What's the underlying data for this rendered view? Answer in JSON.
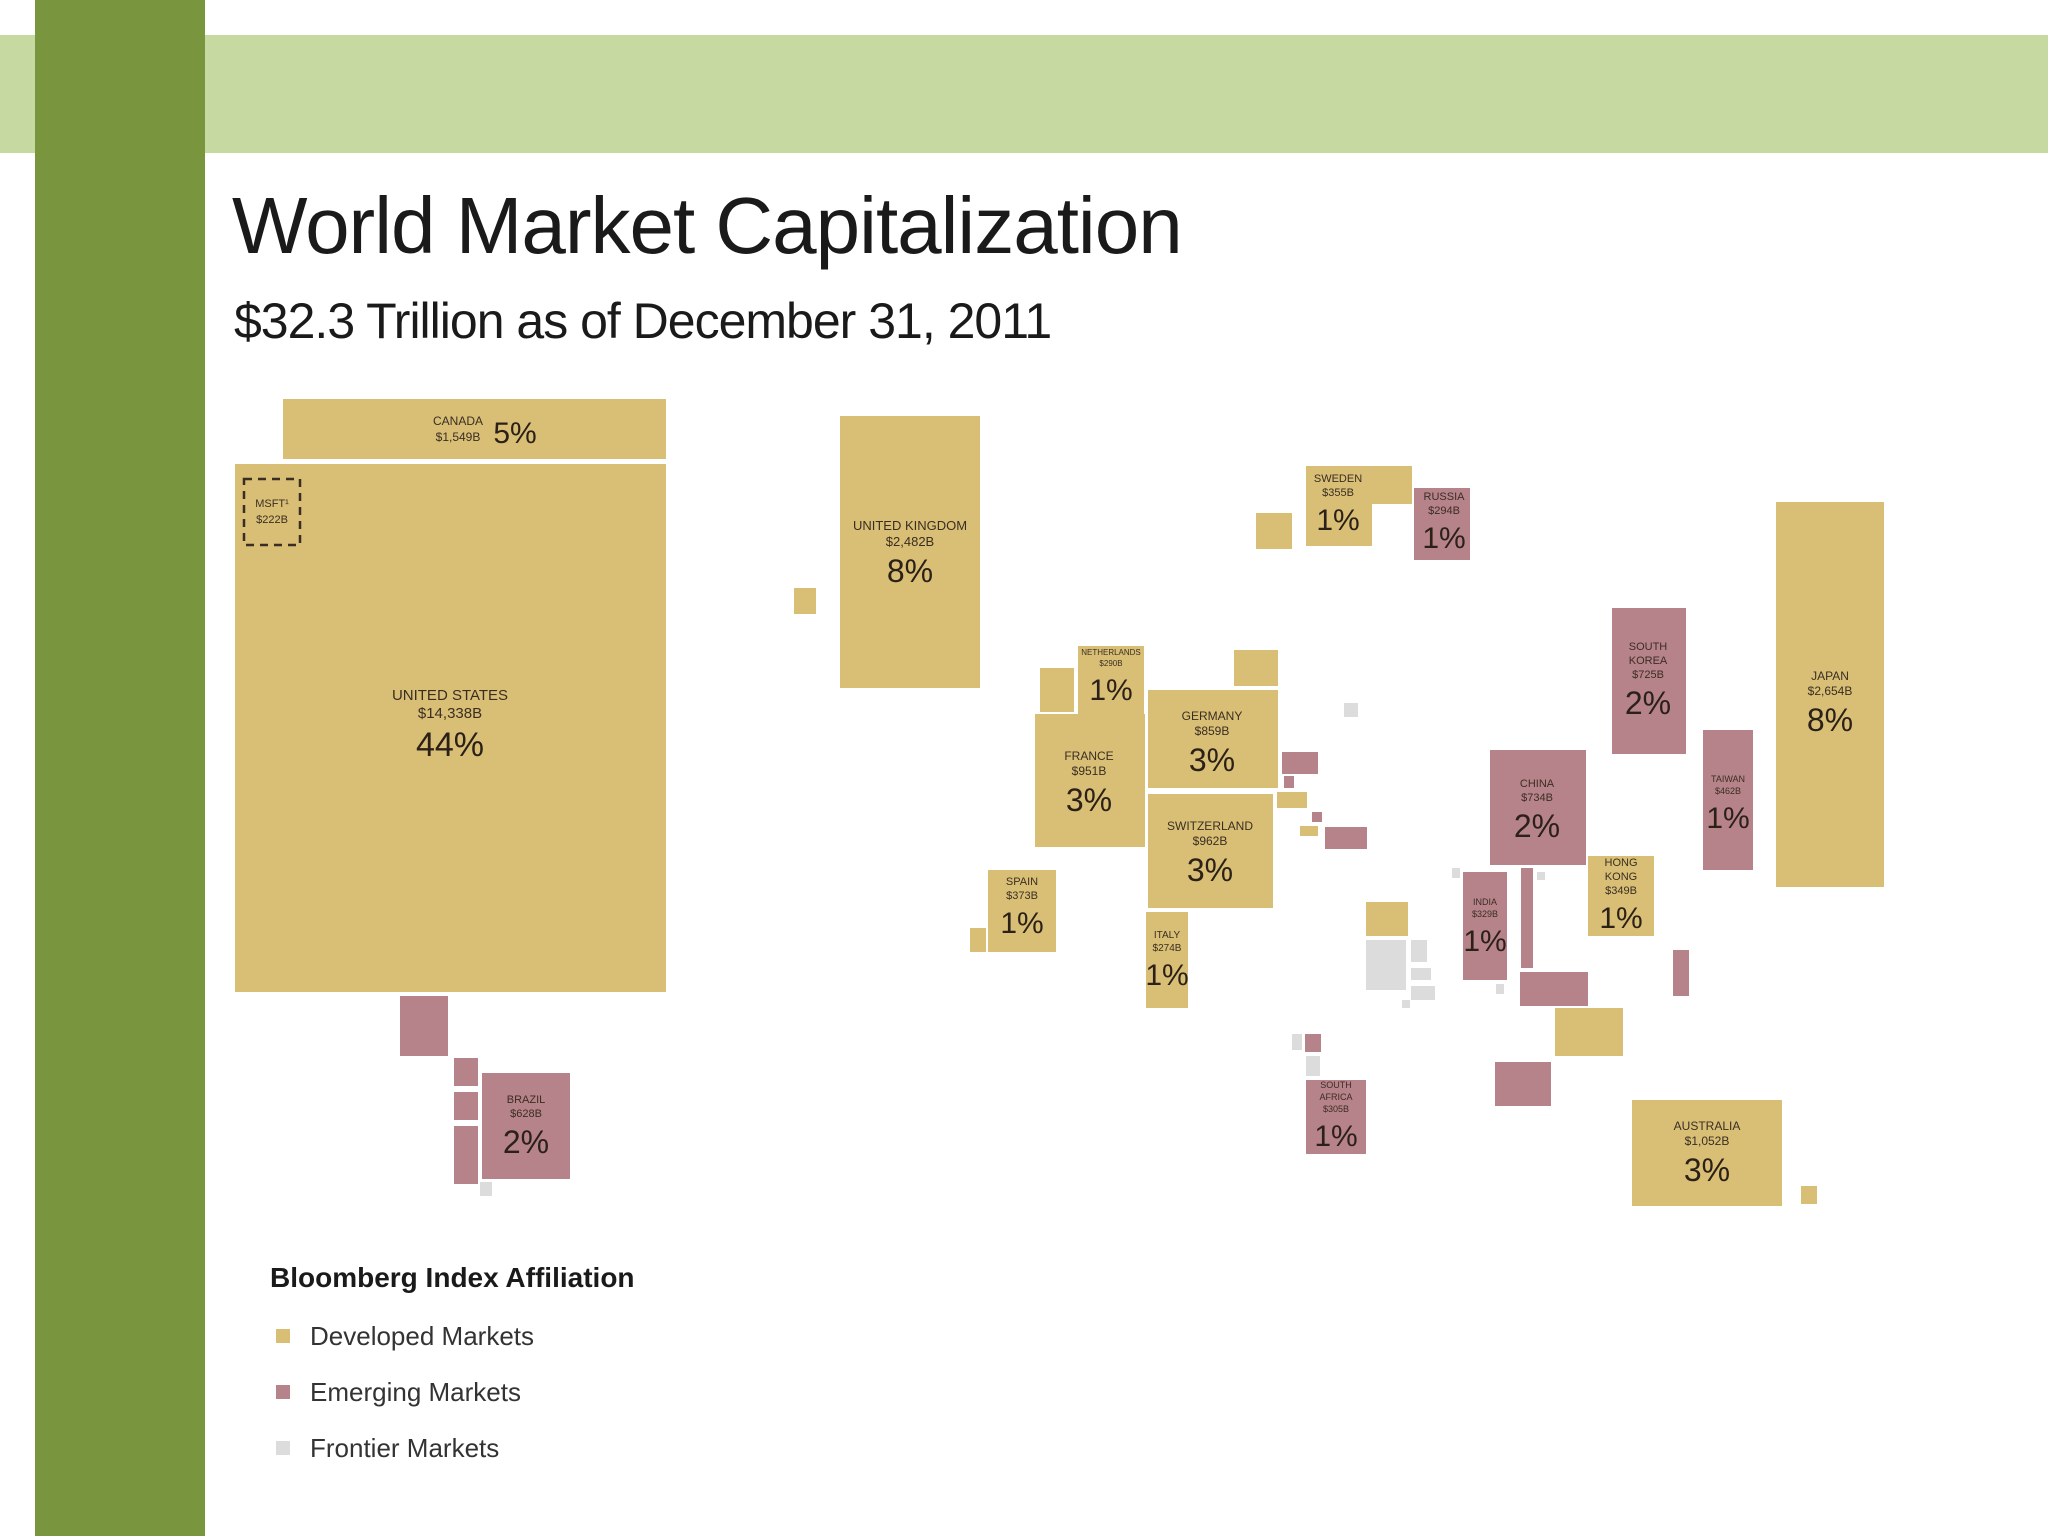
{
  "colors": {
    "top_band": "#c5d9a0",
    "side_bar": "#79953d",
    "developed": "#d9bf76",
    "emerging": "#b7838a",
    "frontier": "#dcdcdc"
  },
  "title": "World Market Capitalization",
  "subtitle": "$32.3 Trillion as of December 31, 2011",
  "chart_data": {
    "type": "treemap-cartogram",
    "title": "World Market Capitalization",
    "subtitle": "$32.3 Trillion as of December 31, 2011",
    "unit": "USD billions",
    "legend_placement": "bottom-left",
    "labeled_markets": [
      {
        "country": "CANADA",
        "value_label": "$1,549B",
        "value": 1549,
        "share_label": "5%",
        "share": 5,
        "category": "developed"
      },
      {
        "country": "UNITED STATES",
        "value_label": "$14,338B",
        "value": 14338,
        "share_label": "44%",
        "share": 44,
        "category": "developed"
      },
      {
        "country": "MSFT¹",
        "value_label": "$222B",
        "value": 222,
        "category": "company"
      },
      {
        "country": "UNITED KINGDOM",
        "value_label": "$2,482B",
        "value": 2482,
        "share_label": "8%",
        "share": 8,
        "category": "developed"
      },
      {
        "country": "SWEDEN",
        "value_label": "$355B",
        "value": 355,
        "share_label": "1%",
        "share": 1,
        "category": "developed"
      },
      {
        "country": "RUSSIA",
        "value_label": "$294B",
        "value": 294,
        "share_label": "1%",
        "share": 1,
        "category": "emerging"
      },
      {
        "country": "NETHERLANDS",
        "value_label": "$290B",
        "value": 290,
        "share_label": "1%",
        "share": 1,
        "category": "developed"
      },
      {
        "country": "GERMANY",
        "value_label": "$859B",
        "value": 859,
        "share_label": "3%",
        "share": 3,
        "category": "developed"
      },
      {
        "country": "FRANCE",
        "value_label": "$951B",
        "value": 951,
        "share_label": "3%",
        "share": 3,
        "category": "developed"
      },
      {
        "country": "SWITZERLAND",
        "value_label": "$962B",
        "value": 962,
        "share_label": "3%",
        "share": 3,
        "category": "developed"
      },
      {
        "country": "SPAIN",
        "value_label": "$373B",
        "value": 373,
        "share_label": "1%",
        "share": 1,
        "category": "developed"
      },
      {
        "country": "ITALY",
        "value_label": "$274B",
        "value": 274,
        "share_label": "1%",
        "share": 1,
        "category": "developed"
      },
      {
        "country": "SOUTH KOREA",
        "value_label": "$725B",
        "value": 725,
        "share_label": "2%",
        "share": 2,
        "category": "emerging"
      },
      {
        "country": "JAPAN",
        "value_label": "$2,654B",
        "value": 2654,
        "share_label": "8%",
        "share": 8,
        "category": "developed"
      },
      {
        "country": "CHINA",
        "value_label": "$734B",
        "value": 734,
        "share_label": "2%",
        "share": 2,
        "category": "emerging"
      },
      {
        "country": "TAIWAN",
        "value_label": "$462B",
        "value": 462,
        "share_label": "1%",
        "share": 1,
        "category": "emerging"
      },
      {
        "country": "HONG KONG",
        "value_label": "$349B",
        "value": 349,
        "share_label": "1%",
        "share": 1,
        "category": "developed"
      },
      {
        "country": "INDIA",
        "value_label": "$329B",
        "value": 329,
        "share_label": "1%",
        "share": 1,
        "category": "emerging"
      },
      {
        "country": "BRAZIL",
        "value_label": "$628B",
        "value": 628,
        "share_label": "2%",
        "share": 2,
        "category": "emerging"
      },
      {
        "country": "SOUTH AFRICA",
        "value_label": "$305B",
        "value": 305,
        "share_label": "1%",
        "share": 1,
        "category": "emerging"
      },
      {
        "country": "AUSTRALIA",
        "value_label": "$1,052B",
        "value": 1052,
        "share_label": "3%",
        "share": 3,
        "category": "developed"
      }
    ],
    "legend": {
      "title": "Bloomberg Index Affiliation",
      "items": [
        {
          "label": "Developed Markets",
          "category": "developed"
        },
        {
          "label": "Emerging Markets",
          "category": "emerging"
        },
        {
          "label": "Frontier Markets",
          "category": "frontier"
        }
      ]
    }
  }
}
